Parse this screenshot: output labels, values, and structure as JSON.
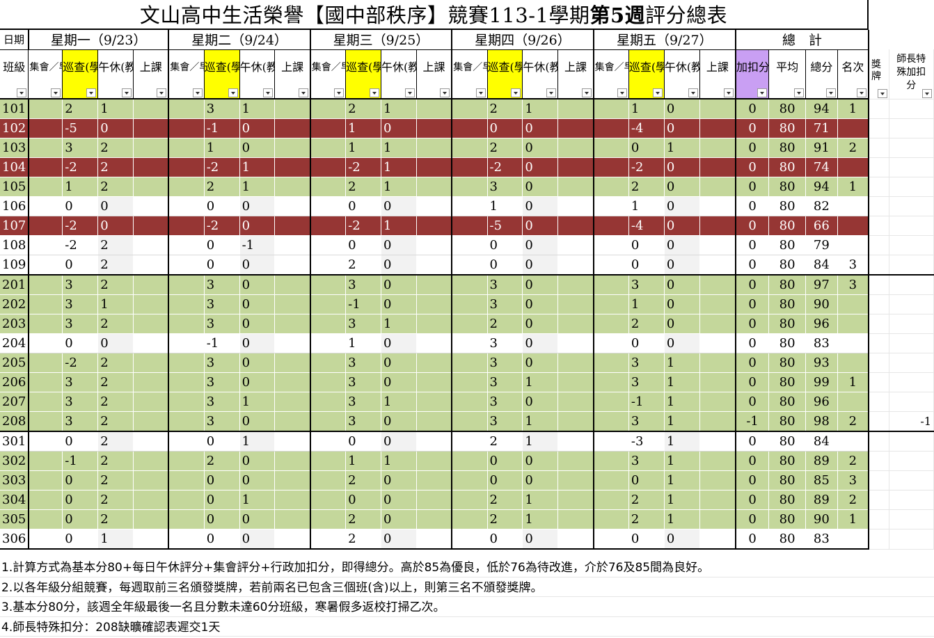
{
  "title": {
    "part1": "文山高中生活榮譽【國中部秩序】競賽113-1學期",
    "bold": "第5週",
    "part2": "評分總表"
  },
  "header": {
    "date_label": "日期",
    "class_label": "班級",
    "days": [
      {
        "label": "星期一（9/23）"
      },
      {
        "label": "星期二（9/24）"
      },
      {
        "label": "星期三（9/25）"
      },
      {
        "label": "星期四（9/26）"
      },
      {
        "label": "星期五（9/27）"
      }
    ],
    "total_label": "總　計",
    "sub": {
      "assembly": "集會／早自習",
      "patrol": "巡查(學生)",
      "lunch": "午休(教師)",
      "class": "上課"
    },
    "bonus": "加扣分",
    "average": "平均",
    "total": "總分",
    "rank": "名次",
    "award": "獎牌",
    "special": "師長特殊加扣分"
  },
  "rows": [
    {
      "cls": "101",
      "d": [
        [
          "2",
          "1"
        ],
        [
          "3",
          "1"
        ],
        [
          "2",
          "1"
        ],
        [
          "2",
          "1"
        ],
        [
          "1",
          "0"
        ]
      ],
      "bonus": "0",
      "avg": "80",
      "total": "94",
      "rank": "1",
      "color": "green"
    },
    {
      "cls": "102",
      "d": [
        [
          "-5",
          "0"
        ],
        [
          "-1",
          "0"
        ],
        [
          "1",
          "0"
        ],
        [
          "0",
          "0"
        ],
        [
          "-4",
          "0"
        ]
      ],
      "bonus": "0",
      "avg": "80",
      "total": "71",
      "rank": "",
      "color": "red"
    },
    {
      "cls": "103",
      "d": [
        [
          "3",
          "2"
        ],
        [
          "1",
          "0"
        ],
        [
          "1",
          "1"
        ],
        [
          "2",
          "0"
        ],
        [
          "0",
          "1"
        ]
      ],
      "bonus": "0",
      "avg": "80",
      "total": "91",
      "rank": "2",
      "color": "green"
    },
    {
      "cls": "104",
      "d": [
        [
          "-2",
          "2"
        ],
        [
          "-2",
          "1"
        ],
        [
          "-2",
          "1"
        ],
        [
          "-2",
          "0"
        ],
        [
          "-2",
          "0"
        ]
      ],
      "bonus": "0",
      "avg": "80",
      "total": "74",
      "rank": "",
      "color": "red"
    },
    {
      "cls": "105",
      "d": [
        [
          "1",
          "2"
        ],
        [
          "2",
          "1"
        ],
        [
          "2",
          "1"
        ],
        [
          "3",
          "0"
        ],
        [
          "2",
          "0"
        ]
      ],
      "bonus": "0",
      "avg": "80",
      "total": "94",
      "rank": "1",
      "color": "green"
    },
    {
      "cls": "106",
      "d": [
        [
          "0",
          "0"
        ],
        [
          "0",
          "0"
        ],
        [
          "0",
          "0"
        ],
        [
          "1",
          "0"
        ],
        [
          "1",
          "0"
        ]
      ],
      "bonus": "0",
      "avg": "80",
      "total": "82",
      "rank": "",
      "color": "white"
    },
    {
      "cls": "107",
      "d": [
        [
          "-2",
          "0"
        ],
        [
          "-2",
          "0"
        ],
        [
          "-2",
          "1"
        ],
        [
          "-5",
          "0"
        ],
        [
          "-4",
          "0"
        ]
      ],
      "bonus": "0",
      "avg": "80",
      "total": "66",
      "rank": "",
      "color": "red"
    },
    {
      "cls": "108",
      "d": [
        [
          "-2",
          "2"
        ],
        [
          "0",
          "-1"
        ],
        [
          "0",
          "0"
        ],
        [
          "0",
          "0"
        ],
        [
          "0",
          "0"
        ]
      ],
      "bonus": "0",
      "avg": "80",
      "total": "79",
      "rank": "",
      "color": "white"
    },
    {
      "cls": "109",
      "d": [
        [
          "0",
          "2"
        ],
        [
          "0",
          "0"
        ],
        [
          "2",
          "0"
        ],
        [
          "0",
          "0"
        ],
        [
          "0",
          "0"
        ]
      ],
      "bonus": "0",
      "avg": "80",
      "total": "84",
      "rank": "3",
      "color": "white",
      "sep": true
    },
    {
      "cls": "201",
      "d": [
        [
          "3",
          "2"
        ],
        [
          "3",
          "0"
        ],
        [
          "3",
          "0"
        ],
        [
          "3",
          "0"
        ],
        [
          "3",
          "0"
        ]
      ],
      "bonus": "0",
      "avg": "80",
      "total": "97",
      "rank": "3",
      "color": "green"
    },
    {
      "cls": "202",
      "d": [
        [
          "3",
          "1"
        ],
        [
          "3",
          "0"
        ],
        [
          "-1",
          "0"
        ],
        [
          "3",
          "0"
        ],
        [
          "1",
          "0"
        ]
      ],
      "bonus": "0",
      "avg": "80",
      "total": "90",
      "rank": "",
      "color": "green"
    },
    {
      "cls": "203",
      "d": [
        [
          "3",
          "2"
        ],
        [
          "3",
          "0"
        ],
        [
          "3",
          "1"
        ],
        [
          "2",
          "0"
        ],
        [
          "2",
          "0"
        ]
      ],
      "bonus": "0",
      "avg": "80",
      "total": "96",
      "rank": "",
      "color": "green"
    },
    {
      "cls": "204",
      "d": [
        [
          "0",
          "0"
        ],
        [
          "-1",
          "0"
        ],
        [
          "1",
          "0"
        ],
        [
          "3",
          "0"
        ],
        [
          "0",
          "0"
        ]
      ],
      "bonus": "0",
      "avg": "80",
      "total": "83",
      "rank": "",
      "color": "white"
    },
    {
      "cls": "205",
      "d": [
        [
          "-2",
          "2"
        ],
        [
          "3",
          "0"
        ],
        [
          "3",
          "0"
        ],
        [
          "3",
          "0"
        ],
        [
          "3",
          "1"
        ]
      ],
      "bonus": "0",
      "avg": "80",
      "total": "93",
      "rank": "",
      "color": "green"
    },
    {
      "cls": "206",
      "d": [
        [
          "3",
          "2"
        ],
        [
          "3",
          "0"
        ],
        [
          "3",
          "0"
        ],
        [
          "3",
          "1"
        ],
        [
          "3",
          "1"
        ]
      ],
      "bonus": "0",
      "avg": "80",
      "total": "99",
      "rank": "1",
      "color": "green"
    },
    {
      "cls": "207",
      "d": [
        [
          "3",
          "2"
        ],
        [
          "3",
          "1"
        ],
        [
          "3",
          "1"
        ],
        [
          "3",
          "0"
        ],
        [
          "-1",
          "1"
        ]
      ],
      "bonus": "0",
      "avg": "80",
      "total": "96",
      "rank": "",
      "color": "green"
    },
    {
      "cls": "208",
      "d": [
        [
          "3",
          "2"
        ],
        [
          "3",
          "0"
        ],
        [
          "3",
          "0"
        ],
        [
          "3",
          "1"
        ],
        [
          "3",
          "1"
        ]
      ],
      "bonus": "-1",
      "avg": "80",
      "total": "98",
      "rank": "2",
      "color": "green",
      "sep": true,
      "special": "-1"
    },
    {
      "cls": "301",
      "d": [
        [
          "0",
          "2"
        ],
        [
          "0",
          "1"
        ],
        [
          "0",
          "0"
        ],
        [
          "2",
          "1"
        ],
        [
          "-3",
          "1"
        ]
      ],
      "bonus": "0",
      "avg": "80",
      "total": "84",
      "rank": "",
      "color": "white"
    },
    {
      "cls": "302",
      "d": [
        [
          "-1",
          "2"
        ],
        [
          "2",
          "0"
        ],
        [
          "1",
          "1"
        ],
        [
          "0",
          "0"
        ],
        [
          "3",
          "1"
        ]
      ],
      "bonus": "0",
      "avg": "80",
      "total": "89",
      "rank": "2",
      "color": "green"
    },
    {
      "cls": "303",
      "d": [
        [
          "0",
          "2"
        ],
        [
          "0",
          "0"
        ],
        [
          "2",
          "0"
        ],
        [
          "0",
          "0"
        ],
        [
          "0",
          "1"
        ]
      ],
      "bonus": "0",
      "avg": "80",
      "total": "85",
      "rank": "3",
      "color": "green"
    },
    {
      "cls": "304",
      "d": [
        [
          "0",
          "2"
        ],
        [
          "0",
          "1"
        ],
        [
          "0",
          "0"
        ],
        [
          "2",
          "1"
        ],
        [
          "2",
          "1"
        ]
      ],
      "bonus": "0",
      "avg": "80",
      "total": "89",
      "rank": "2",
      "color": "green"
    },
    {
      "cls": "305",
      "d": [
        [
          "0",
          "2"
        ],
        [
          "0",
          "0"
        ],
        [
          "2",
          "0"
        ],
        [
          "2",
          "1"
        ],
        [
          "2",
          "1"
        ]
      ],
      "bonus": "0",
      "avg": "80",
      "total": "90",
      "rank": "1",
      "color": "green"
    },
    {
      "cls": "306",
      "d": [
        [
          "0",
          "1"
        ],
        [
          "0",
          "0"
        ],
        [
          "2",
          "0"
        ],
        [
          "0",
          "0"
        ],
        [
          "0",
          "0"
        ]
      ],
      "bonus": "0",
      "avg": "80",
      "total": "83",
      "rank": "",
      "color": "white",
      "sep": true
    }
  ],
  "notes": [
    "1.計算方式為基本分80+每日午休評分+集會評分+行政加扣分，即得總分。高於85為優良，低於76為待改進，介於76及85間為良好。",
    "2.以各年級分組競賽，每週取前三名頒發獎牌，若前兩名已包含三個班(含)以上，則第三名不頒發獎牌。",
    "3.基本分80分，該週全年級最後一名且分數未達60分班級，寒暑假多返校打掃乙次。",
    "4.師長特殊扣分：208缺曠確認表遲交1天"
  ],
  "colors": {
    "green": "#c4d79b",
    "red": "#963634",
    "yellow": "#ffff00",
    "purple": "#c99ff3"
  }
}
